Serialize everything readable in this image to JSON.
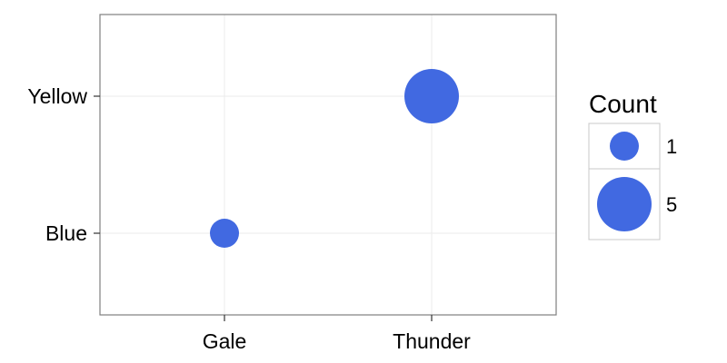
{
  "chart_data": {
    "type": "scatter",
    "x_categories": [
      "Gale",
      "Thunder"
    ],
    "y_categories": [
      "Blue",
      "Yellow"
    ],
    "points": [
      {
        "x": "Gale",
        "y": "Blue",
        "count": 1
      },
      {
        "x": "Thunder",
        "y": "Yellow",
        "count": 5
      }
    ],
    "size_legend": {
      "title": "Count",
      "entries": [
        {
          "label": "1",
          "value": 1
        },
        {
          "label": "5",
          "value": 5
        }
      ]
    },
    "grid": true,
    "legend_position": "right",
    "colors": {
      "point": "#4169E1",
      "gridline": "#ebebeb",
      "panel_border": "#7f7f7f",
      "legend_key_border": "#c8c8c8"
    }
  }
}
